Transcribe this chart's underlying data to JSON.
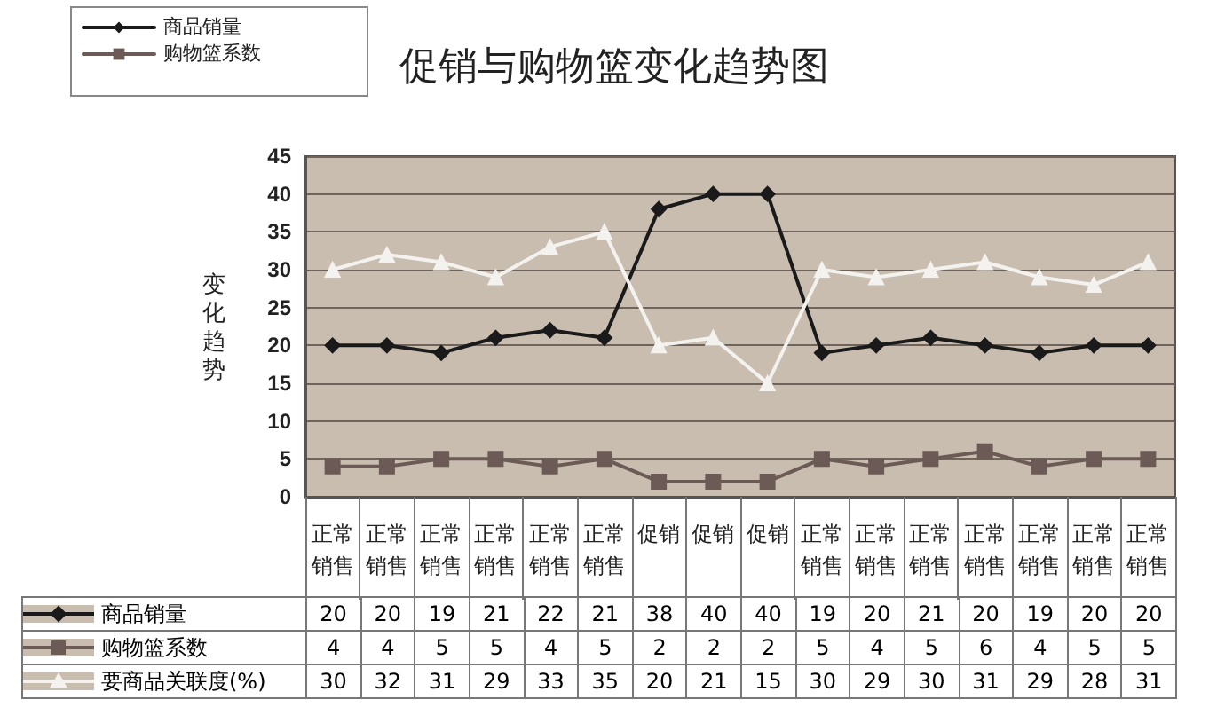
{
  "chart_data": {
    "type": "line",
    "title": "促销与购物篮变化趋势图",
    "ylabel": "变化趋势",
    "categories": [
      "正常销售",
      "正常销售",
      "正常销售",
      "正常销售",
      "正常销售",
      "正常销售",
      "促销",
      "促销",
      "促销",
      "正常销售",
      "正常销售",
      "正常销售",
      "正常销售",
      "正常销售",
      "正常销售",
      "正常销售"
    ],
    "series": [
      {
        "name": "商品销量",
        "color": "#1a1a1a",
        "marker": "diamond",
        "values": [
          20,
          20,
          19,
          21,
          22,
          21,
          38,
          40,
          40,
          19,
          20,
          21,
          20,
          19,
          20,
          20
        ]
      },
      {
        "name": "购物篮系数",
        "color": "#6b5a55",
        "marker": "square",
        "values": [
          4,
          4,
          5,
          5,
          4,
          5,
          2,
          2,
          2,
          5,
          4,
          5,
          6,
          4,
          5,
          5
        ]
      },
      {
        "name": "要商品关联度(%)",
        "color": "#f4f2ee",
        "marker": "triangle",
        "values": [
          30,
          32,
          31,
          29,
          33,
          35,
          20,
          21,
          15,
          30,
          29,
          30,
          31,
          29,
          28,
          31
        ]
      }
    ],
    "ylim": [
      0,
      45
    ],
    "yticks": [
      0,
      5,
      10,
      15,
      20,
      25,
      30,
      35,
      40,
      45
    ],
    "grid": "y",
    "legend": "left",
    "data_labels": true,
    "line_style": "solid"
  }
}
